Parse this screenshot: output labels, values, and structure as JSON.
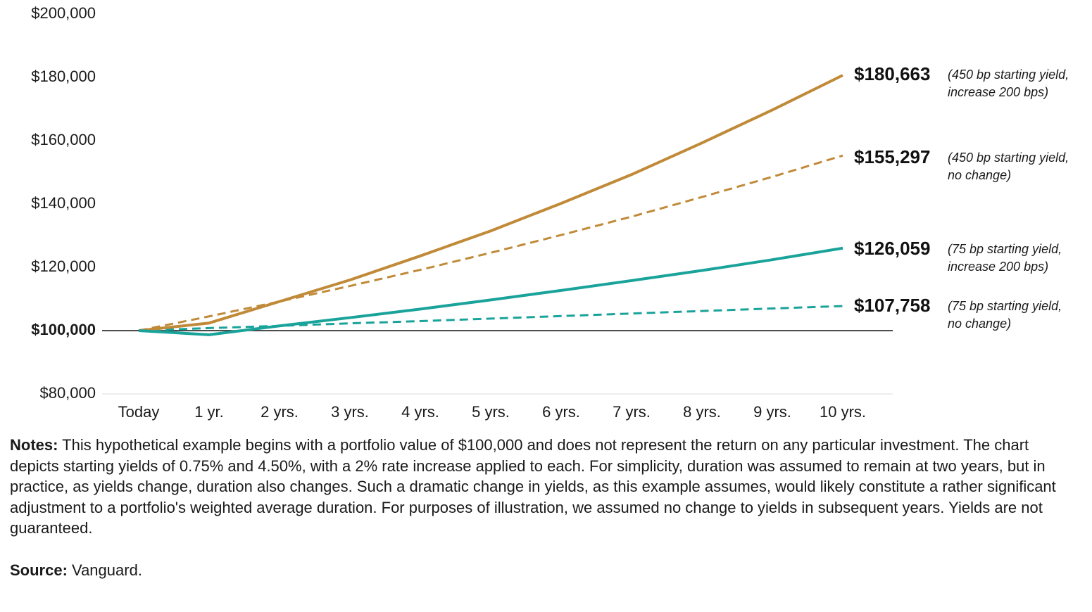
{
  "chart_data": {
    "type": "line",
    "title": "",
    "xlabel": "",
    "ylabel": "",
    "categories": [
      "Today",
      "1 yr.",
      "2 yrs.",
      "3 yrs.",
      "4 yrs.",
      "5 yrs.",
      "6 yrs.",
      "7 yrs.",
      "8 yrs.",
      "9 yrs.",
      "10 yrs."
    ],
    "ylim": [
      80000,
      200000
    ],
    "yticks": [
      {
        "value": 200000,
        "label": "$200,000"
      },
      {
        "value": 180000,
        "label": "$180,000"
      },
      {
        "value": 160000,
        "label": "$160,000"
      },
      {
        "value": 140000,
        "label": "$140,000"
      },
      {
        "value": 120000,
        "label": "$120,000"
      },
      {
        "value": 100000,
        "label": "$100,000",
        "emphasis": true
      },
      {
        "value": 80000,
        "label": "$80,000"
      }
    ],
    "baseline": 100000,
    "grid": false,
    "series": [
      {
        "key": "s450_increase",
        "color": "#c08a38",
        "dashed": false,
        "values": [
          100000,
          102400,
          109200,
          116000,
          123600,
          131500,
          140200,
          149300,
          159300,
          169700,
          180663
        ],
        "end_label": "$180,663",
        "note_lines": [
          "(450 bp starting yield,",
          "increase 200 bps)"
        ]
      },
      {
        "key": "s450_nochange",
        "color": "#c08a38",
        "dashed": true,
        "values": [
          100000,
          104500,
          109200,
          114100,
          119200,
          124600,
          130200,
          136000,
          142200,
          148600,
          155297
        ],
        "end_label": "$155,297",
        "note_lines": [
          "(450 bp starting yield,",
          "no change)"
        ]
      },
      {
        "key": "s75_increase",
        "color": "#1aa39a",
        "dashed": false,
        "values": [
          100000,
          98700,
          101500,
          104100,
          106800,
          109700,
          112700,
          115800,
          119000,
          122400,
          126059
        ],
        "end_label": "$126,059",
        "note_lines": [
          "(75 bp starting yield,",
          "increase 200 bps)"
        ]
      },
      {
        "key": "s75_nochange",
        "color": "#1aa39a",
        "dashed": true,
        "values": [
          100000,
          100800,
          101500,
          102300,
          103000,
          103800,
          104600,
          105400,
          106200,
          107000,
          107758
        ],
        "end_label": "$107,758",
        "note_lines": [
          "(75 bp starting yield,",
          "no change)"
        ]
      }
    ]
  },
  "footnotes": {
    "notes_label": "Notes:",
    "notes_text": " This hypothetical example begins with a portfolio value of $100,000 and does not represent the return on any particular investment. The chart depicts starting yields of 0.75% and 4.50%, with a 2% rate increase applied to each. For simplicity, duration was assumed to remain at two years, but in practice, as yields change, duration also changes. Such a dramatic change in yields, as this example assumes, would likely constitute a rather significant adjustment to a portfolio's weighted average duration. For purposes of illustration, we assumed no change to yields in subsequent years. Yields are not guaranteed.",
    "source_label": "Source:",
    "source_text": " Vanguard."
  }
}
